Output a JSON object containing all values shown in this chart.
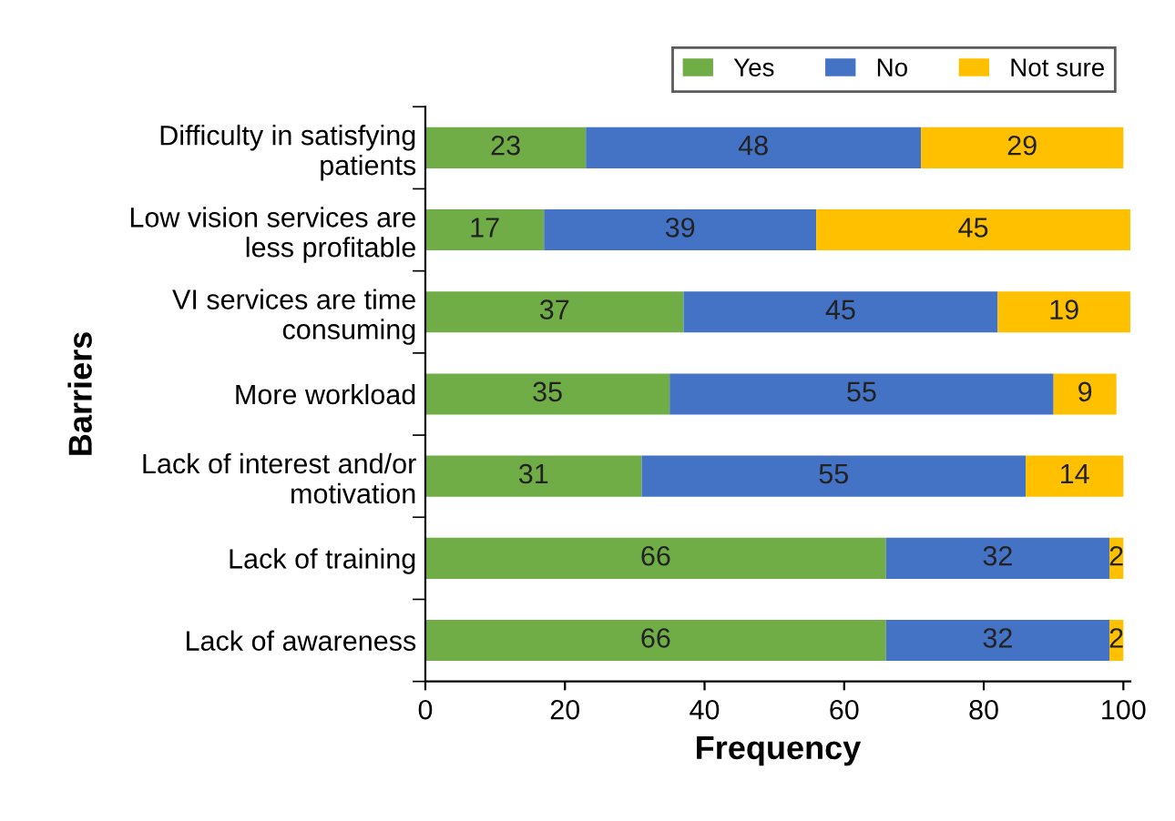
{
  "chart_data": {
    "type": "bar",
    "orientation": "horizontal",
    "stacked": true,
    "xlabel": "Frequency",
    "ylabel": "Barriers",
    "categories": [
      "Difficulty in satisfying\npatients",
      "Low vision services are\nless profitable",
      "VI services are time\nconsuming",
      "More workload",
      "Lack of interest and/or\nmotivation",
      "Lack of training",
      "Lack of awareness"
    ],
    "series": [
      {
        "name": "Yes",
        "color": "#70ad47",
        "values": [
          23,
          17,
          37,
          35,
          31,
          66,
          66
        ]
      },
      {
        "name": "No",
        "color": "#4472c4",
        "values": [
          48,
          39,
          45,
          55,
          55,
          32,
          32
        ]
      },
      {
        "name": "Not sure",
        "color": "#ffc000",
        "values": [
          29,
          45,
          19,
          9,
          14,
          2,
          2
        ]
      }
    ],
    "xlim": [
      0,
      101
    ],
    "xticks": [
      0,
      20,
      40,
      60,
      80,
      100
    ],
    "data_labels": true,
    "grid": false,
    "legend": "top right"
  }
}
